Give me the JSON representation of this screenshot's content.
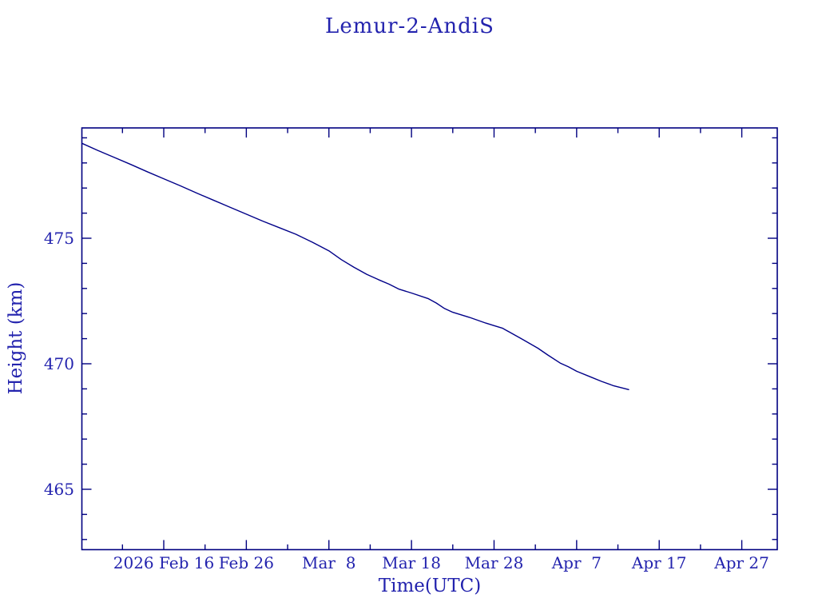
{
  "page": {
    "background": "#ffffff"
  },
  "colors": {
    "text": "#2323ae",
    "axis": "#000080",
    "line": "#000088",
    "background": "#ffffff"
  },
  "chart_data": {
    "type": "line",
    "title": "Lemur-2-AndiS",
    "xlabel": "Time(UTC)",
    "ylabel": "Height (km)",
    "grid": false,
    "legend_position": "none",
    "x_axis": {
      "kind": "time",
      "epoch": "2026 Feb 6 = day 0",
      "tick_labels": [
        "2026 Feb 16",
        "Feb 26",
        "Mar  8",
        "Mar 18",
        "Mar 28",
        "Apr  7",
        "Apr 17",
        "Apr 27"
      ],
      "tick_day_offsets": [
        10,
        20,
        30,
        40,
        50,
        60,
        70,
        80
      ],
      "minor_tick_day_offsets": [
        5,
        15,
        25,
        35,
        45,
        55,
        65,
        75
      ],
      "range_day_offsets": [
        0.1,
        84.3
      ]
    },
    "y_axis": {
      "tick_labels": [
        "475",
        "470",
        "465"
      ],
      "tick_values": [
        475,
        470,
        465
      ],
      "minor_tick_step_km": 1,
      "range_km": [
        462.6,
        479.4
      ]
    },
    "series": [
      {
        "name": "Lemur-2-AndiS orbital height",
        "units": "km vs days since 2026 Feb 6",
        "points_day_km": [
          [
            0.1,
            478.78
          ],
          [
            2,
            478.5
          ],
          [
            4,
            478.22
          ],
          [
            6,
            477.94
          ],
          [
            8,
            477.65
          ],
          [
            10,
            477.37
          ],
          [
            12,
            477.09
          ],
          [
            14,
            476.8
          ],
          [
            16,
            476.52
          ],
          [
            18,
            476.24
          ],
          [
            20,
            475.96
          ],
          [
            22,
            475.68
          ],
          [
            24,
            475.42
          ],
          [
            26,
            475.16
          ],
          [
            28,
            474.84
          ],
          [
            30,
            474.5
          ],
          [
            31.5,
            474.15
          ],
          [
            33,
            473.85
          ],
          [
            34.6,
            473.56
          ],
          [
            36,
            473.35
          ],
          [
            37.3,
            473.17
          ],
          [
            38.5,
            472.97
          ],
          [
            40,
            472.82
          ],
          [
            42,
            472.6
          ],
          [
            43,
            472.42
          ],
          [
            44,
            472.2
          ],
          [
            45,
            472.05
          ],
          [
            47,
            471.85
          ],
          [
            49,
            471.62
          ],
          [
            50,
            471.52
          ],
          [
            51,
            471.42
          ],
          [
            53.3,
            471.0
          ],
          [
            55.3,
            470.62
          ],
          [
            56.5,
            470.35
          ],
          [
            58,
            470.03
          ],
          [
            59,
            469.88
          ],
          [
            60,
            469.7
          ],
          [
            61.5,
            469.5
          ],
          [
            63,
            469.3
          ],
          [
            64.5,
            469.12
          ],
          [
            66.3,
            468.97
          ]
        ]
      }
    ]
  }
}
